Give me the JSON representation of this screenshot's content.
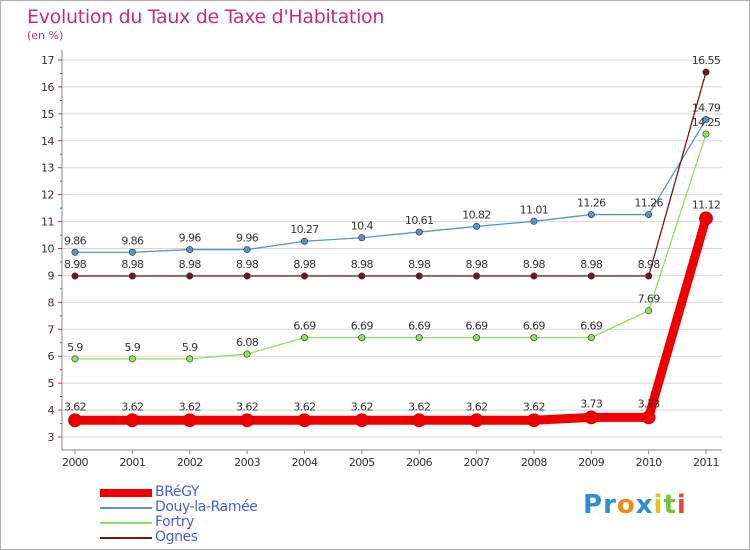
{
  "header": {
    "title": "Evolution du Taux de Taxe d'Habitation",
    "unit": "(en %)"
  },
  "chart_data": {
    "type": "line",
    "title": "Evolution du Taux de Taxe d'Habitation",
    "subtitle": "(en %)",
    "xlabel": "",
    "ylabel": "",
    "x": [
      "2000",
      "2001",
      "2002",
      "2003",
      "2004",
      "2005",
      "2006",
      "2007",
      "2008",
      "2009",
      "2010",
      "2011"
    ],
    "ylim": [
      3,
      17
    ],
    "yticks": [
      3,
      4,
      5,
      6,
      7,
      8,
      9,
      10,
      11,
      12,
      13,
      14,
      15,
      16,
      17
    ],
    "grid": "horizontal",
    "legend": "bottom-left",
    "series": [
      {
        "name": "BRéGY",
        "color": "#ee0000",
        "values": [
          3.62,
          3.62,
          3.62,
          3.62,
          3.62,
          3.62,
          3.62,
          3.62,
          3.62,
          3.73,
          3.73,
          11.12
        ],
        "labels": [
          "3.62",
          "3.62",
          "3.62",
          "3.62",
          "3.62",
          "3.62",
          "3.62",
          "3.62",
          "3.62",
          "3.73",
          "3.73",
          "11.12"
        ]
      },
      {
        "name": "Douy-la-Ramée",
        "color": "#5b93c8",
        "values": [
          9.86,
          9.86,
          9.96,
          9.96,
          10.27,
          10.4,
          10.61,
          10.82,
          11.01,
          11.26,
          11.26,
          14.79
        ],
        "labels": [
          "9.86",
          "9.86",
          "9.96",
          "9.96",
          "10.27",
          "10.4",
          "10.61",
          "10.82",
          "11.01",
          "11.26",
          "11.26",
          "14.79"
        ]
      },
      {
        "name": "Fortry",
        "color": "#8fe060",
        "values": [
          5.9,
          5.9,
          5.9,
          6.08,
          6.69,
          6.69,
          6.69,
          6.69,
          6.69,
          6.69,
          7.69,
          14.25
        ],
        "labels": [
          "5.9",
          "5.9",
          "5.9",
          "6.08",
          "6.69",
          "6.69",
          "6.69",
          "6.69",
          "6.69",
          "6.69",
          "7.69",
          "14.25"
        ]
      },
      {
        "name": "Ognes",
        "color": "#6b1a1a",
        "values": [
          8.98,
          8.98,
          8.98,
          8.98,
          8.98,
          8.98,
          8.98,
          8.98,
          8.98,
          8.98,
          8.98,
          16.55
        ],
        "labels": [
          "8.98",
          "8.98",
          "8.98",
          "8.98",
          "8.98",
          "8.98",
          "8.98",
          "8.98",
          "8.98",
          "8.98",
          "8.98",
          "16.55"
        ]
      }
    ]
  },
  "logo": {
    "letters": [
      {
        "ch": "P",
        "color": "#2c8fd6"
      },
      {
        "ch": "r",
        "color": "#2c8fd6"
      },
      {
        "ch": "o",
        "color": "#f08a1a"
      },
      {
        "ch": "x",
        "color": "#2c8fd6"
      },
      {
        "ch": "i",
        "color": "#e8c21a"
      },
      {
        "ch": "t",
        "color": "#7ac142"
      },
      {
        "ch": "i",
        "color": "#e04a3a"
      }
    ]
  }
}
